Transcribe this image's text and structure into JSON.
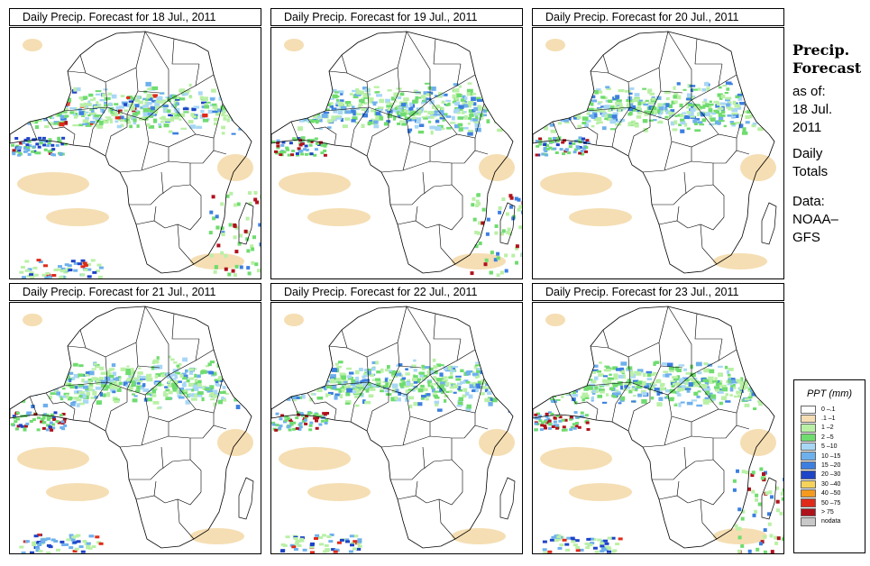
{
  "panels": [
    {
      "title": "Daily Precip. Forecast for  18 Jul., 2011"
    },
    {
      "title": "Daily Precip. Forecast for  19 Jul., 2011"
    },
    {
      "title": "Daily Precip. Forecast for  20 Jul., 2011"
    },
    {
      "title": "Daily Precip. Forecast for  21 Jul., 2011"
    },
    {
      "title": "Daily Precip. Forecast for  22 Jul., 2011"
    },
    {
      "title": "Daily Precip. Forecast for  23 Jul., 2011"
    }
  ],
  "sidebar": {
    "heading_1": "Precip.",
    "heading_2": "Forecast",
    "asof_1": "as of:",
    "asof_2": "18 Jul.",
    "asof_3": "2011",
    "totals_1": "Daily",
    "totals_2": "Totals",
    "data_1": "Data:",
    "data_2": "NOAA–",
    "data_3": "GFS"
  },
  "legend": {
    "title": "PPT (mm)",
    "items": [
      {
        "label": "0 –.1",
        "color": "#ffffff"
      },
      {
        "label": ".1 –1",
        "color": "#f5deb3"
      },
      {
        "label": "1 –2",
        "color": "#b9f0a6"
      },
      {
        "label": "2 –5",
        "color": "#6fdc6f"
      },
      {
        "label": "5 –10",
        "color": "#a8d7f5"
      },
      {
        "label": "10 –15",
        "color": "#6eb0ec"
      },
      {
        "label": "15 –20",
        "color": "#3c7fe0"
      },
      {
        "label": "20 –30",
        "color": "#1e44c8"
      },
      {
        "label": "30 –40",
        "color": "#f5d35a"
      },
      {
        "label": "40 –50",
        "color": "#f59a1e"
      },
      {
        "label": "50 –75",
        "color": "#e02a1a"
      },
      {
        "label": "> 75",
        "color": "#b0121c"
      },
      {
        "label": "nodata",
        "color": "#c8c8c8"
      }
    ]
  }
}
